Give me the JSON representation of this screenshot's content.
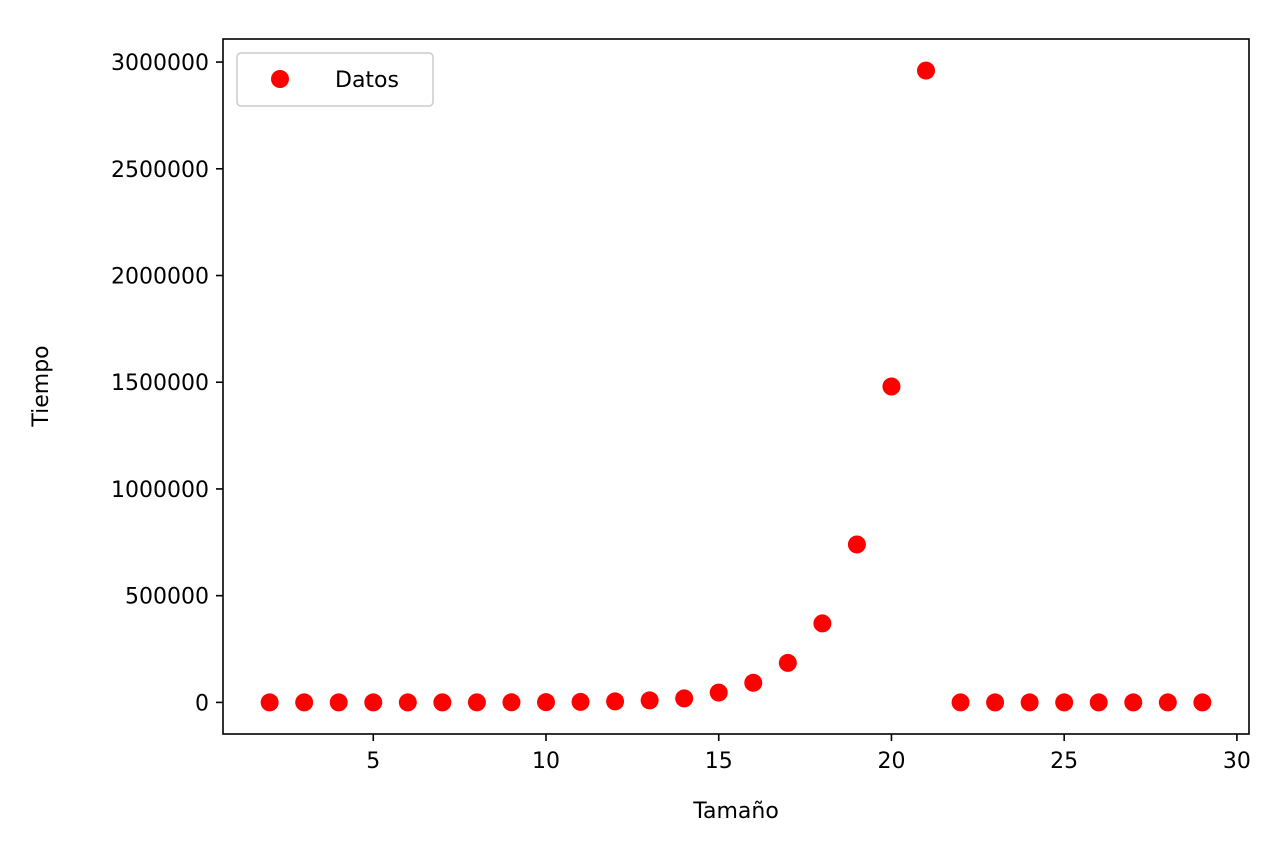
{
  "chart_data": {
    "type": "scatter",
    "title": "",
    "xlabel": "Tamaño",
    "ylabel": "Tiempo",
    "xlim": [
      0.65,
      30.35
    ],
    "ylim": [
      -148000,
      3108000
    ],
    "x_ticks": [
      5,
      10,
      15,
      20,
      25,
      30
    ],
    "y_ticks": [
      0,
      500000,
      1000000,
      1500000,
      2000000,
      2500000,
      3000000
    ],
    "x_tick_labels": [
      "5",
      "10",
      "15",
      "20",
      "25",
      "30"
    ],
    "y_tick_labels": [
      "0",
      "500000",
      "1000000",
      "1500000",
      "2000000",
      "2500000",
      "3000000"
    ],
    "grid": false,
    "legend": {
      "position": "top-left",
      "entries": [
        "Datos"
      ]
    },
    "series": [
      {
        "name": "Datos",
        "color": "#ff0000",
        "marker": "circle",
        "x": [
          2,
          3,
          4,
          5,
          6,
          7,
          8,
          9,
          10,
          11,
          12,
          13,
          14,
          15,
          16,
          17,
          18,
          19,
          20,
          21,
          22,
          23,
          24,
          25,
          26,
          27,
          28,
          29
        ],
        "y": [
          5,
          10,
          20,
          40,
          80,
          160,
          300,
          600,
          1200,
          2400,
          4700,
          9400,
          18700,
          46000,
          92000,
          185000,
          370000,
          740000,
          1480000,
          2960000,
          0,
          0,
          0,
          0,
          0,
          0,
          0,
          0
        ]
      }
    ]
  }
}
